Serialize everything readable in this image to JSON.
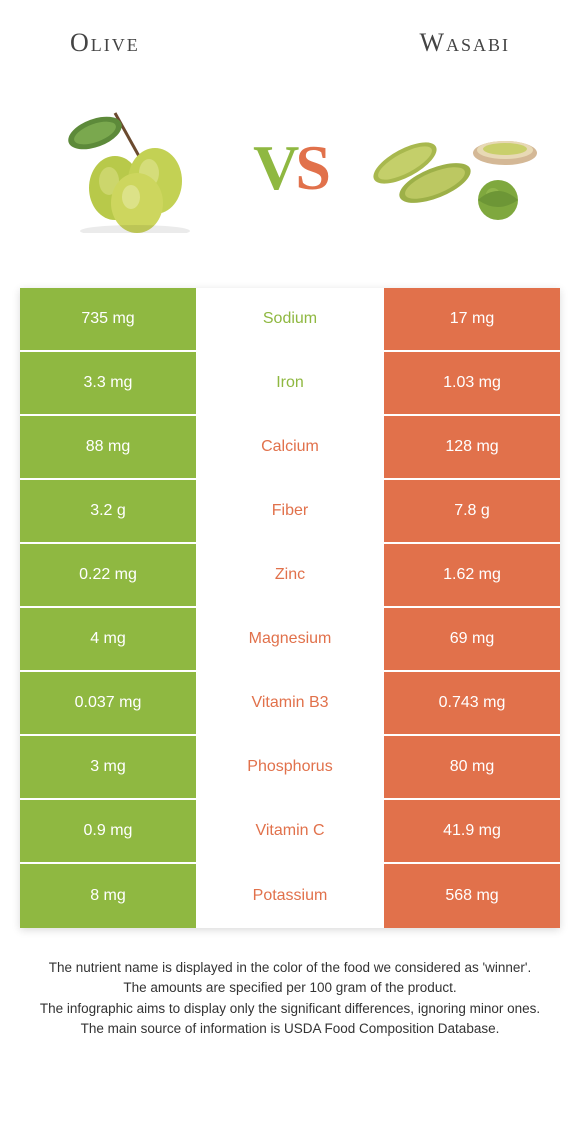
{
  "left": {
    "name": "Olive",
    "color": "#8fb841"
  },
  "right": {
    "name": "Wasabi",
    "color": "#e1714b"
  },
  "vs": {
    "v": "V",
    "s": "S"
  },
  "rows": [
    {
      "left": "735 mg",
      "label": "Sodium",
      "right": "17 mg",
      "winner": "left"
    },
    {
      "left": "3.3 mg",
      "label": "Iron",
      "right": "1.03 mg",
      "winner": "left"
    },
    {
      "left": "88 mg",
      "label": "Calcium",
      "right": "128 mg",
      "winner": "right"
    },
    {
      "left": "3.2 g",
      "label": "Fiber",
      "right": "7.8 g",
      "winner": "right"
    },
    {
      "left": "0.22 mg",
      "label": "Zinc",
      "right": "1.62 mg",
      "winner": "right"
    },
    {
      "left": "4 mg",
      "label": "Magnesium",
      "right": "69 mg",
      "winner": "right"
    },
    {
      "left": "0.037 mg",
      "label": "Vitamin B3",
      "right": "0.743 mg",
      "winner": "right"
    },
    {
      "left": "3 mg",
      "label": "Phosphorus",
      "right": "80 mg",
      "winner": "right"
    },
    {
      "left": "0.9 mg",
      "label": "Vitamin C",
      "right": "41.9 mg",
      "winner": "right"
    },
    {
      "left": "8 mg",
      "label": "Potassium",
      "right": "568 mg",
      "winner": "right"
    }
  ],
  "footer": {
    "line1": "The nutrient name is displayed in the color of the food we considered as 'winner'.",
    "line2": "The amounts are specified per 100 gram of the product.",
    "line3": "The infographic aims to display only the significant differences, ignoring minor ones.",
    "line4": "The main source of information is USDA Food Composition Database."
  },
  "mid_bg": "#ffffff"
}
